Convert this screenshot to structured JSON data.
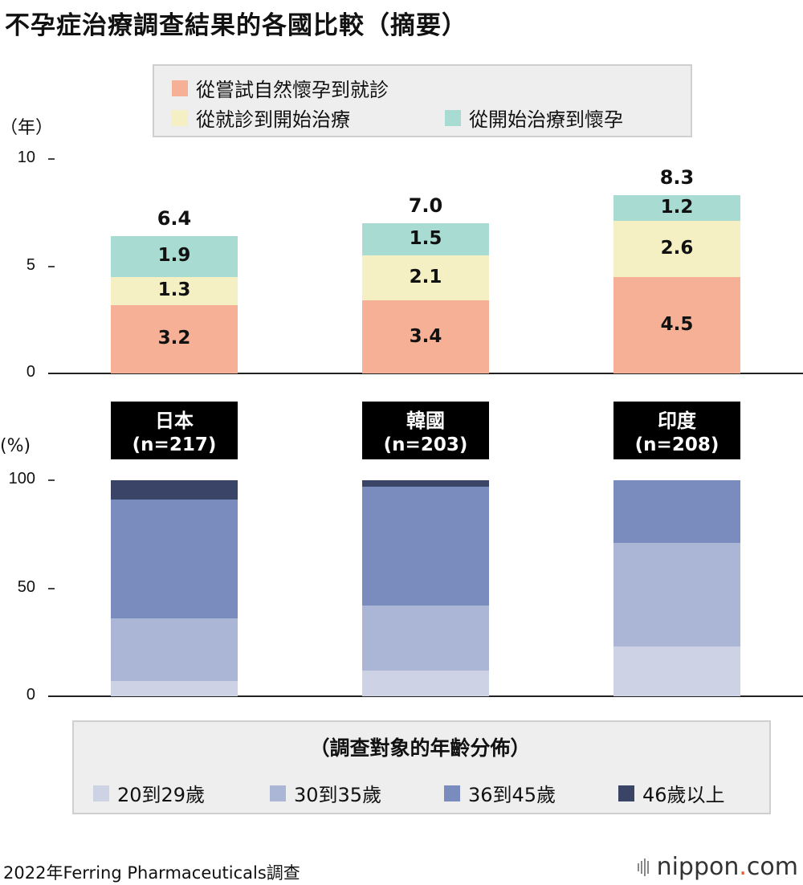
{
  "title": "不孕症治療調查結果的各國比較（摘要）",
  "source": "2022年Ferring Pharmaceuticals調查",
  "brand": {
    "name": "nippon",
    "dot": ".",
    "suffix": "com"
  },
  "colors": {
    "phase1": "#f5b095",
    "phase2": "#f4f0c4",
    "phase3": "#a8dcd2",
    "age1": "#cdd3e5",
    "age2": "#abb5d5",
    "age3": "#7a8bbd",
    "age4": "#3a4466"
  },
  "countries": [
    {
      "name": "日本",
      "n": "(n=217)"
    },
    {
      "name": "韓國",
      "n": "(n=203)"
    },
    {
      "name": "印度",
      "n": "(n=208)"
    }
  ],
  "chart_data": [
    {
      "type": "bar",
      "stacked": true,
      "unit": "（年）",
      "categories": [
        "日本",
        "韓國",
        "印度"
      ],
      "series": [
        {
          "name": "從嘗試自然懷孕到就診",
          "values": [
            3.2,
            3.4,
            4.5
          ],
          "labels": [
            "3.2",
            "3.4",
            "4.5"
          ],
          "color": "#f5b095"
        },
        {
          "name": "從就診到開始治療",
          "values": [
            1.3,
            2.1,
            2.6
          ],
          "labels": [
            "1.3",
            "2.1",
            "2.6"
          ],
          "color": "#f4f0c4"
        },
        {
          "name": "從開始治療到懷孕",
          "values": [
            1.9,
            1.5,
            1.2
          ],
          "labels": [
            "1.9",
            "1.5",
            "1.2"
          ],
          "color": "#a8dcd2"
        }
      ],
      "totals": [
        6.4,
        7.0,
        8.3
      ],
      "total_labels": [
        "6.4",
        "7.0",
        "8.3"
      ],
      "ylim": [
        0,
        10
      ],
      "yticks": [
        0,
        5,
        10
      ],
      "ytick_labels": [
        "0",
        "5",
        "10"
      ],
      "legend_position": "top"
    },
    {
      "type": "bar",
      "stacked": true,
      "unit": "(%)",
      "categories": [
        "日本",
        "韓國",
        "印度"
      ],
      "legend_title": "（調查對象的年齡分佈）",
      "series": [
        {
          "name": "20到29歲",
          "values": [
            7,
            12,
            23
          ],
          "color": "#cdd3e5"
        },
        {
          "name": "30到35歲",
          "values": [
            29,
            30,
            48
          ],
          "color": "#abb5d5"
        },
        {
          "name": "36到45歲",
          "values": [
            55,
            55,
            29
          ],
          "color": "#7a8bbd"
        },
        {
          "name": "46歲以上",
          "values": [
            9,
            3,
            0
          ],
          "color": "#3a4466"
        }
      ],
      "ylim": [
        0,
        100
      ],
      "yticks": [
        0,
        50,
        100
      ],
      "ytick_labels": [
        "0",
        "50",
        "100"
      ],
      "legend_position": "bottom"
    }
  ]
}
